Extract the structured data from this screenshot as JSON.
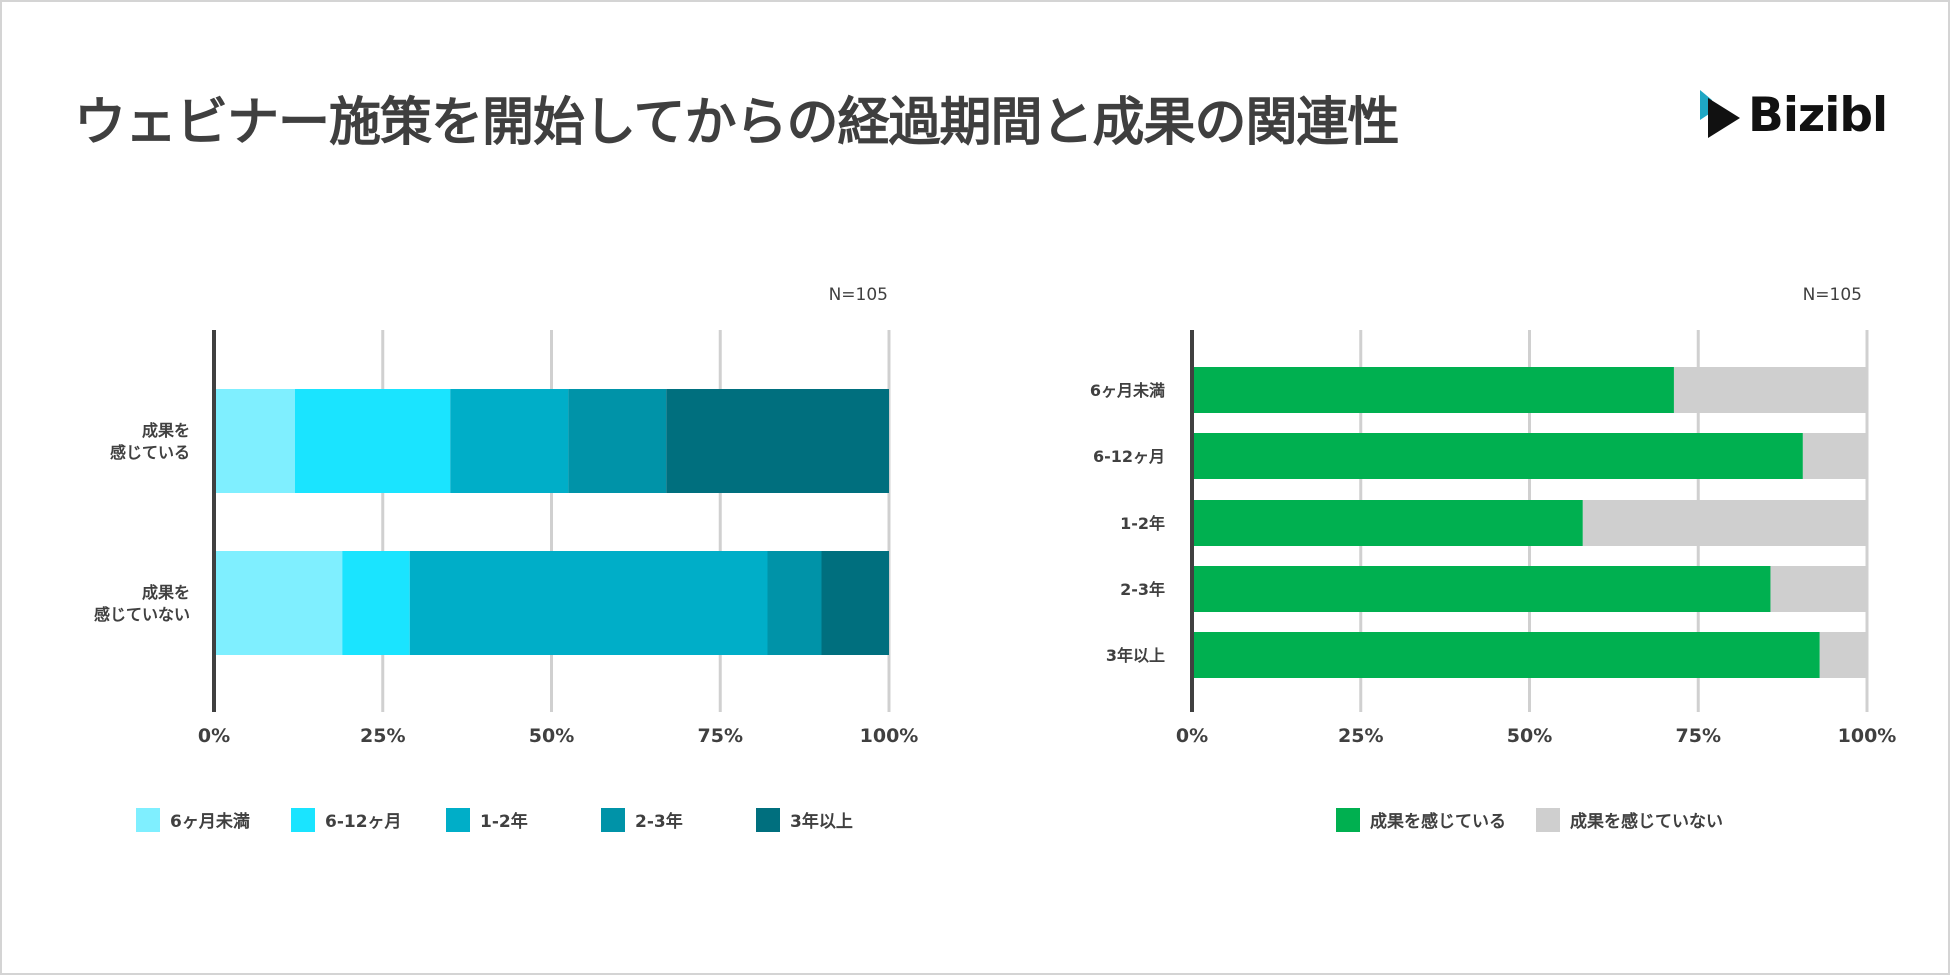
{
  "title": "ウェビナー施策を開始してからの経過期間と成果の関連性",
  "logo": {
    "text": "Bizibl",
    "icon": "play-icon",
    "icon_color": "#1ea7c4",
    "icon_dark": "#111111"
  },
  "chart_data": [
    {
      "type": "bar",
      "orientation": "horizontal-stacked",
      "note": "N=105",
      "categories": [
        [
          "成果を",
          "感じている"
        ],
        [
          "成果を",
          "感じていない"
        ]
      ],
      "series": [
        {
          "name": "6ヶ月未満",
          "color": "#7fefff",
          "values": [
            12,
            19
          ]
        },
        {
          "name": "6-12ヶ月",
          "color": "#1ae4ff",
          "values": [
            23,
            10
          ]
        },
        {
          "name": "1-2年",
          "color": "#00aec8",
          "values": [
            17.5,
            53
          ]
        },
        {
          "name": "2-3年",
          "color": "#0093a8",
          "values": [
            14.5,
            8
          ]
        },
        {
          "name": "3年以上",
          "color": "#006f7e",
          "values": [
            33,
            10
          ]
        }
      ],
      "xlim": [
        0,
        100
      ],
      "xticks": [
        "0%",
        "25%",
        "50%",
        "75%",
        "100%"
      ],
      "legend": "bottom"
    },
    {
      "type": "bar",
      "orientation": "horizontal-stacked",
      "note": "N=105",
      "categories": [
        "6ヶ月未満",
        "6-12ヶ月",
        "1-2年",
        "2-3年",
        "3年以上"
      ],
      "series": [
        {
          "name": "成果を感じている",
          "color": "#00b050",
          "values": [
            71.4,
            90.5,
            57.9,
            85.7,
            93.0
          ]
        },
        {
          "name": "成果を感じていない",
          "color": "#cfcfcf",
          "values": [
            28.6,
            9.5,
            42.1,
            14.3,
            7.0
          ]
        }
      ],
      "xlim": [
        0,
        100
      ],
      "xticks": [
        "0%",
        "25%",
        "50%",
        "75%",
        "100%"
      ],
      "legend": "bottom"
    }
  ]
}
